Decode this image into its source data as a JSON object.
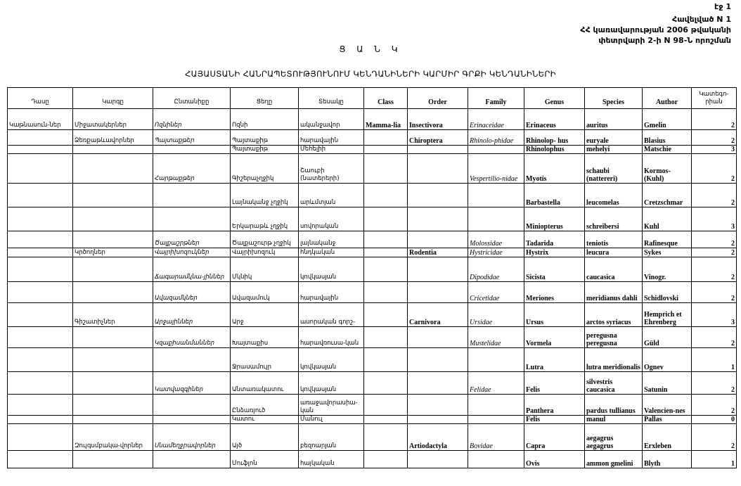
{
  "page_label": "էջ 1",
  "appendix": {
    "line1": "Հավելված N 1",
    "line2": "ՀՀ կառավարության 2006 թվականի",
    "line3": "փետրվարի 2-ի N 98-Ն որոշման"
  },
  "title": "Ց Ա Ն Կ",
  "subtitle": "ՀԱՅԱՍՏԱՆԻ ՀԱՆՐԱՊԵՏՈՒԹՅՈՒՆՈՒՄ ԿԵՆԴԱՆԻՆԵՐԻ ԿԱՐՄԻՐ ԳՐՔԻ ԿԵՆԴԱՆԻՆԵՐԻ",
  "table": {
    "headers": [
      "Դասը",
      "Կարգը",
      "Ընտանիքը",
      "Ցեղը",
      "Տեսակը",
      "Class",
      "Order",
      "Family",
      "Genus",
      "Species",
      "Author",
      "Կատեգո-րիան"
    ],
    "rows": [
      [
        "Կաթնասուն-ներ",
        "Միջատակերներ",
        "Ոզնիներ",
        "Ոզնի",
        "ականջավոր",
        "Mamma-lia",
        "Insectivora",
        "Erinaceidae",
        "Erinaceus",
        "auritus",
        "Gmelin",
        "2"
      ],
      [
        "",
        "Ձեռքաթևավորներ",
        "Պայտաքթեր",
        "Պայտաքիթ",
        "հարավային",
        "",
        "Chiroptera",
        "Rhinolo-phidae",
        "Rhinolop- hus",
        "euryale",
        "Blasius",
        "2"
      ],
      [
        "",
        "",
        "",
        "Պայտաքիթ",
        "Մեհելիի",
        "",
        "",
        "",
        "Rhinolophus",
        "mehelyi",
        "Matschie",
        "3"
      ],
      [
        "",
        "",
        "Հարթաքթեր",
        "Գիշերաչղջիկ",
        "Շաուբի (նատերերի)",
        "",
        "",
        "Vespertilio-nidae",
        "Myotis",
        "schaubi (nattereri)",
        "Kormos-(Kuhl)",
        "2"
      ],
      [
        "",
        "",
        "",
        "Լայնականջ չղջիկ",
        "արևմտյան",
        "",
        "",
        "",
        "Barbastella",
        "leucomelas",
        "Cretzschmar",
        "2"
      ],
      [
        "",
        "",
        "",
        "Երկարաթև չղջիկ",
        "սովորական",
        "",
        "",
        "",
        "Miniopterus",
        "schreibersi",
        "Kuhl",
        "3"
      ],
      [
        "",
        "",
        "Ծալքաշրթներ",
        "Ծալքաշուրթ չղջիկ",
        "լայնականջ",
        "",
        "",
        "Molossidae",
        "Tadarida",
        "teniotis",
        "Rafinesque",
        "2"
      ],
      [
        "",
        "Կրծողներ",
        "Վայրիխոզուկներ",
        "Վայրիխոզուկ",
        "հնդկական",
        "",
        "Rodentia",
        "Hystricidae",
        "Hystrix",
        "leucura",
        "Sykes",
        "2"
      ],
      [
        "",
        "",
        "Ճագարամկնա-յիններ",
        "Մկնիկ",
        "կովկասյան",
        "",
        "",
        "Dipodidae",
        "Sicista",
        "caucasica",
        "Vinogr.",
        "2"
      ],
      [
        "",
        "",
        "Ավազամկներ",
        "Ավազամուկ",
        "հարավային",
        "",
        "",
        "Cricetidae",
        "Meriones",
        "meridianus dahli",
        "Schidlovski",
        "2"
      ],
      [
        "",
        "Գիշատիչներ",
        "Արջայիններ",
        "Արջ",
        "ասորական գորշ-",
        "",
        "Carnivora",
        "Ursidae",
        "Ursus",
        "arctos syriacus",
        "Hemprich et Ehrenberg",
        "3"
      ],
      [
        "",
        "",
        "Կզաքիսանմաններ",
        "Խայտաքիս",
        "հարավռուսա-կան",
        "",
        "",
        "Mustelidae",
        "Vormela",
        "peregusna peregusna",
        "Güld",
        "2"
      ],
      [
        "",
        "",
        "",
        "Ջրասամույր",
        "կովկասյան",
        "",
        "",
        "",
        "Lutra",
        "lutra meridionalis",
        "Ognev",
        "1"
      ],
      [
        "",
        "",
        "Կատվազգիներ",
        "Անտառակատու",
        "կովկասյան",
        "",
        "",
        "Felidae",
        "Felis",
        "silvestris caucasica",
        "Satunin",
        "2"
      ],
      [
        "",
        "",
        "",
        "Ընձառյուծ",
        "առաջավորասիա-կան",
        "",
        "",
        "",
        "Panthera",
        "pardus tullianus",
        "Valencien-nes",
        "2"
      ],
      [
        "",
        "",
        "",
        "Կատու",
        "Մանուլ",
        "",
        "",
        "",
        "Felis",
        "manul",
        "Pallas",
        "0"
      ],
      [
        "",
        "Զույգսմբակա-վորներ",
        "Սնամեղջրավորներ",
        "Այծ",
        "բեզոարյան",
        "",
        "Artiodactyla",
        "Bovidae",
        "Capra",
        "aegagrus aegagrus",
        "Erxleben",
        "2"
      ],
      [
        "",
        "",
        "",
        "Մուֆլոն",
        "հայկական",
        "",
        "",
        "",
        "Ovis",
        "ammon gmelini",
        "Blyth",
        "1"
      ]
    ]
  }
}
